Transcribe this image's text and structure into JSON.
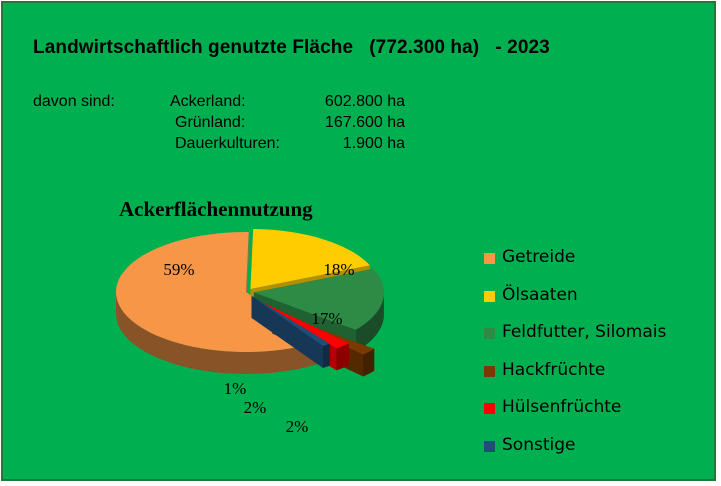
{
  "header": {
    "title": "Landwirtschaftlich genutzte Fläche   (772.300 ha)   - 2023",
    "davon_label": "davon sind:",
    "rows": [
      {
        "label": "Ackerland:",
        "value": "602.800 ha"
      },
      {
        "label": "Grünland:",
        "value": "167.600 ha"
      },
      {
        "label": "Dauerkulturen:",
        "value": "1.900 ha"
      }
    ]
  },
  "chart_data": {
    "type": "pie",
    "title": "Ackerflächennutzung",
    "categories": [
      "Getreide",
      "Ölsaaten",
      "Feldfutter, Silomais",
      "Hackfrüchte",
      "Hülsenfrüchte",
      "Sonstige"
    ],
    "values": [
      59,
      18,
      17,
      2,
      2,
      1
    ],
    "labels": [
      "59%",
      "18%",
      "17%",
      "2%",
      "2%",
      "1%"
    ],
    "colors": [
      "#f79646",
      "#ffcc00",
      "#2e8b46",
      "#7a3b00",
      "#ff0000",
      "#1f4e79"
    ],
    "legend_position": "right",
    "three_d": true,
    "exploded": true
  }
}
